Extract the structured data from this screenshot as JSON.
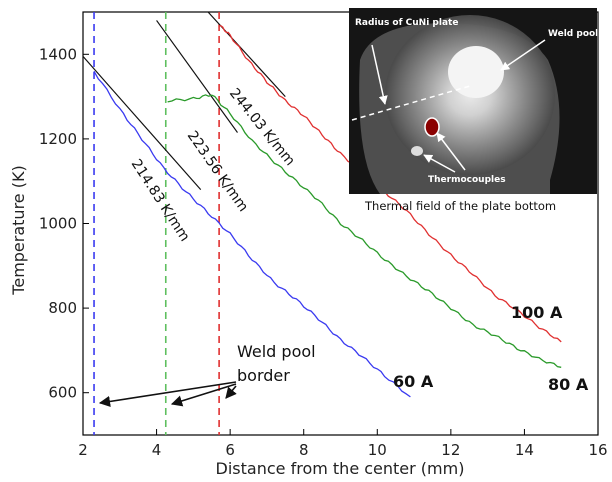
{
  "chart_data": {
    "type": "line",
    "xlabel": "Distance from the center (mm)",
    "ylabel": "Temperature (K)",
    "xlim": [
      2,
      16
    ],
    "ylim": [
      500,
      1500
    ],
    "xticks": [
      2,
      4,
      6,
      8,
      10,
      12,
      14,
      16
    ],
    "yticks": [
      600,
      800,
      1000,
      1200,
      1400
    ],
    "grid": false,
    "series": [
      {
        "name": "60 A",
        "color": "#3a3af0",
        "x": [
          2.3,
          3.0,
          3.6,
          4.2,
          4.8,
          5.4,
          6.0,
          6.6,
          7.2,
          7.8,
          8.4,
          9.0,
          9.6,
          10.2,
          10.9
        ],
        "y": [
          1360,
          1270,
          1200,
          1130,
          1075,
          1025,
          975,
          915,
          860,
          820,
          775,
          725,
          685,
          640,
          590
        ]
      },
      {
        "name": "80 A",
        "color": "#2a9a2a",
        "x": [
          4.3,
          5.0,
          5.5,
          6.0,
          6.6,
          7.2,
          7.8,
          8.4,
          9.0,
          9.6,
          10.2,
          10.8,
          11.4,
          12.0,
          12.6,
          13.2,
          13.8,
          14.4,
          15.0
        ],
        "y": [
          1290,
          1295,
          1305,
          1260,
          1195,
          1145,
          1100,
          1055,
          1000,
          960,
          915,
          875,
          840,
          800,
          760,
          735,
          705,
          680,
          660
        ]
      },
      {
        "name": "100 A",
        "color": "#e03030",
        "x": [
          5.7,
          6.0,
          6.5,
          7.0,
          7.5,
          8.0,
          8.5,
          9.0,
          9.6,
          10.2,
          10.8,
          11.4,
          12.0,
          12.6,
          13.2,
          13.8,
          14.4,
          15.0
        ],
        "y": [
          1470,
          1445,
          1385,
          1335,
          1290,
          1255,
          1210,
          1165,
          1120,
          1075,
          1030,
          975,
          925,
          880,
          830,
          795,
          755,
          720
        ]
      }
    ],
    "border_lines": [
      {
        "x": 2.3,
        "color": "#3a3af0"
      },
      {
        "x": 4.25,
        "color": "#5fbf5f"
      },
      {
        "x": 5.7,
        "color": "#e03030"
      }
    ],
    "slope_lines": [
      {
        "label": "214.83 K/mm",
        "x1": 2.0,
        "y1": 1395,
        "x2": 5.2,
        "y2": 1080
      },
      {
        "label": "223.56 K/mm",
        "x1": 4.0,
        "y1": 1480,
        "x2": 6.2,
        "y2": 1215
      },
      {
        "label": "244.03 K/mm",
        "x1": 5.4,
        "y1": 1500,
        "x2": 7.5,
        "y2": 1300
      }
    ],
    "annotations": {
      "weld_pool_border": [
        "Weld pool",
        "border"
      ]
    },
    "inset": {
      "caption": "Thermal field of the plate bottom",
      "labels": {
        "radius": "Radius of CuNi plate",
        "weld_pool": "Weld pool",
        "thermocouples": "Thermocouples"
      }
    }
  }
}
